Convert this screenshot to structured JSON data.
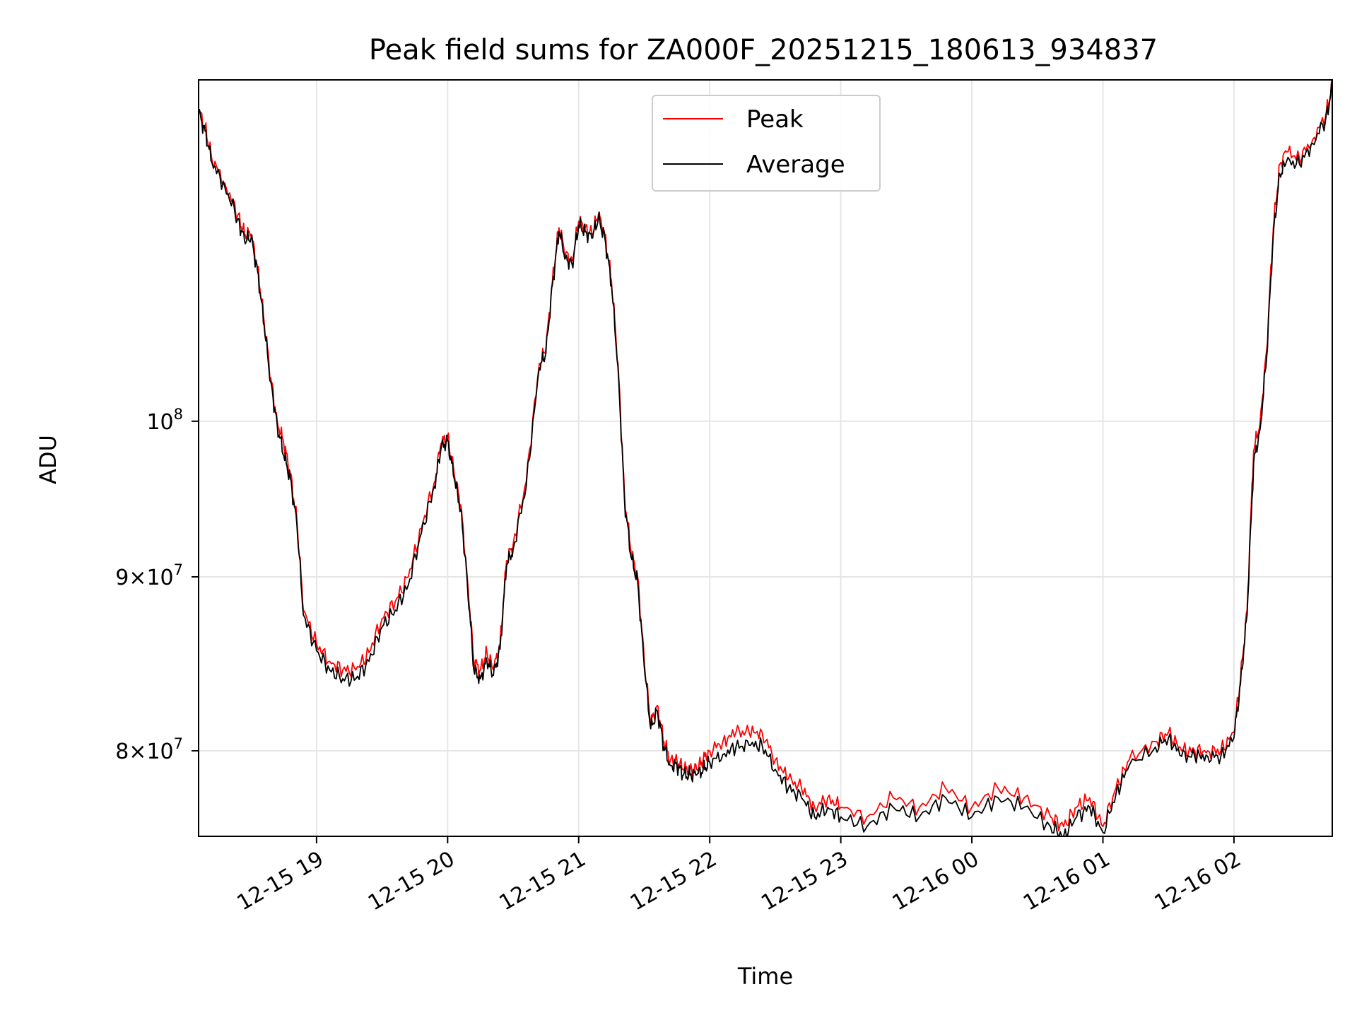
{
  "chart_data": {
    "type": "line",
    "title": "Peak field sums for ZA000F_20251215_180613_934837",
    "xlabel": "Time",
    "ylabel": "ADU",
    "yscale": "log",
    "grid": true,
    "legend_position": "top-center",
    "x_unit": "hours since 2025-12-15 18:00",
    "xlim": [
      0.1,
      8.75
    ],
    "ylim": [
      75500000,
      126000000
    ],
    "x_ticks": [
      {
        "value": 1,
        "label": "12-15 19"
      },
      {
        "value": 2,
        "label": "12-15 20"
      },
      {
        "value": 3,
        "label": "12-15 21"
      },
      {
        "value": 4,
        "label": "12-15 22"
      },
      {
        "value": 5,
        "label": "12-15 23"
      },
      {
        "value": 6,
        "label": "12-16 00"
      },
      {
        "value": 7,
        "label": "12-16 01"
      },
      {
        "value": 8,
        "label": "12-16 02"
      }
    ],
    "y_ticks": [
      {
        "value": 80000000,
        "mantissa": "8",
        "base": "10",
        "exp": "7"
      },
      {
        "value": 90000000,
        "mantissa": "9",
        "base": "10",
        "exp": "7"
      },
      {
        "value": 100000000,
        "mantissa": "",
        "base": "10",
        "exp": "8"
      }
    ],
    "x": [
      0.1,
      0.15,
      0.2,
      0.3,
      0.4,
      0.45,
      0.5,
      0.55,
      0.6,
      0.65,
      0.7,
      0.75,
      0.8,
      0.85,
      0.9,
      1.0,
      1.1,
      1.2,
      1.3,
      1.4,
      1.5,
      1.6,
      1.7,
      1.8,
      1.9,
      1.95,
      2.0,
      2.05,
      2.1,
      2.15,
      2.2,
      2.25,
      2.3,
      2.35,
      2.4,
      2.45,
      2.5,
      2.6,
      2.7,
      2.75,
      2.8,
      2.85,
      2.9,
      2.95,
      3.0,
      3.05,
      3.1,
      3.15,
      3.2,
      3.25,
      3.3,
      3.35,
      3.4,
      3.45,
      3.5,
      3.55,
      3.6,
      3.65,
      3.7,
      3.75,
      3.8,
      3.85,
      3.9,
      3.95,
      4.0,
      4.1,
      4.2,
      4.3,
      4.4,
      4.5,
      4.6,
      4.7,
      4.8,
      4.9,
      5.0,
      5.2,
      5.4,
      5.6,
      5.8,
      6.0,
      6.2,
      6.4,
      6.6,
      6.7,
      6.8,
      6.9,
      7.0,
      7.1,
      7.2,
      7.4,
      7.5,
      7.6,
      7.7,
      7.8,
      7.9,
      8.0,
      8.05,
      8.1,
      8.15,
      8.2,
      8.25,
      8.3,
      8.35,
      8.4,
      8.5,
      8.6,
      8.7,
      8.75
    ],
    "series": [
      {
        "name": "Peak",
        "color": "#ff0000",
        "values": [
          123500000,
          122000000,
          119500000,
          117500000,
          115000000,
          113500000,
          113500000,
          111000000,
          107000000,
          103000000,
          100000000,
          98500000,
          96500000,
          93500000,
          88000000,
          86000000,
          85000000,
          84500000,
          84500000,
          85500000,
          87500000,
          88500000,
          90000000,
          93000000,
          96000000,
          98500000,
          99000000,
          96500000,
          94500000,
          90000000,
          85000000,
          84500000,
          85500000,
          84500000,
          86000000,
          91000000,
          92000000,
          96000000,
          104000000,
          105000000,
          110000000,
          114000000,
          112000000,
          111500000,
          114500000,
          114000000,
          113500000,
          115000000,
          113500000,
          110000000,
          104000000,
          95000000,
          91500000,
          90000000,
          85000000,
          81500000,
          82500000,
          80500000,
          79500000,
          79500000,
          79000000,
          79000000,
          79000000,
          79500000,
          80000000,
          80500000,
          81000000,
          81000000,
          81000000,
          79500000,
          78500000,
          78000000,
          77000000,
          77500000,
          77000000,
          76500000,
          77500000,
          77000000,
          78000000,
          77000000,
          78000000,
          77500000,
          76500000,
          76000000,
          77000000,
          77500000,
          76000000,
          78000000,
          79500000,
          80500000,
          81000000,
          80000000,
          80000000,
          80000000,
          80000000,
          81000000,
          84000000,
          88000000,
          98000000,
          100000000,
          105000000,
          114000000,
          119000000,
          120000000,
          119500000,
          121000000,
          123000000,
          125500000
        ]
      },
      {
        "name": "Average",
        "color": "#000000",
        "values": [
          123200000,
          121700000,
          119200000,
          117200000,
          114700000,
          113000000,
          113200000,
          110700000,
          106700000,
          102700000,
          99700000,
          97700000,
          96200000,
          93200000,
          87700000,
          85600000,
          84500000,
          84000000,
          84000000,
          85000000,
          87000000,
          88000000,
          89500000,
          92700000,
          95700000,
          98200000,
          98700000,
          96200000,
          94200000,
          89700000,
          84500000,
          84000000,
          85000000,
          84200000,
          85700000,
          90700000,
          91700000,
          95700000,
          103700000,
          104700000,
          109700000,
          113700000,
          111700000,
          111200000,
          114200000,
          113700000,
          113200000,
          114700000,
          113200000,
          109700000,
          103700000,
          94700000,
          91200000,
          89700000,
          84700000,
          81200000,
          82200000,
          80200000,
          79200000,
          79200000,
          78700000,
          78700000,
          78700000,
          79000000,
          79400000,
          79800000,
          80200000,
          80300000,
          80300000,
          79000000,
          78000000,
          77500000,
          76500000,
          77000000,
          76500000,
          76000000,
          77000000,
          76500000,
          77500000,
          76500000,
          77500000,
          77000000,
          76000000,
          75500000,
          76500000,
          77000000,
          75700000,
          77700000,
          79200000,
          80200000,
          80700000,
          79700000,
          79700000,
          79700000,
          79700000,
          80700000,
          83700000,
          87700000,
          97200000,
          99500000,
          104500000,
          113500000,
          118200000,
          119200000,
          119000000,
          120700000,
          122700000,
          125300000
        ]
      }
    ]
  }
}
